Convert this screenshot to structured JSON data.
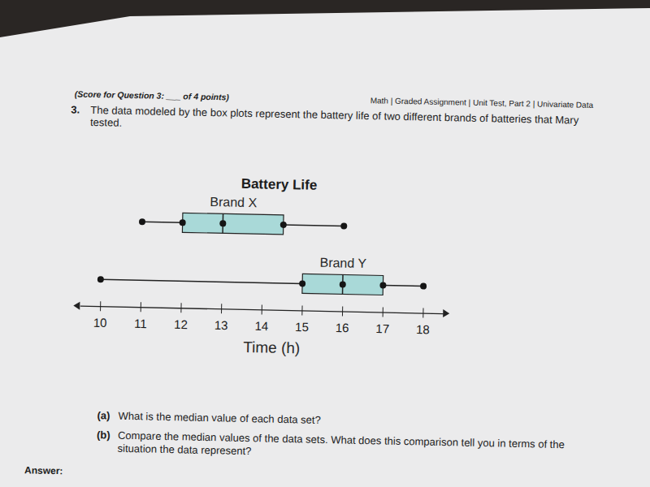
{
  "header": {
    "score": "(Score for Question 3: ___ of 4 points)",
    "course": "Math | Graded Assignment | Unit Test, Part 2 | Univariate Data"
  },
  "question": {
    "number": "3.",
    "lines": [
      "The data modeled by the box plots represent the battery life of two different brands of batteries that Mary",
      "tested."
    ]
  },
  "chart_data": {
    "type": "box",
    "title": "Battery Life",
    "x_label": "Time (h)",
    "orientation": "horizontal",
    "color": "#a9d9d8",
    "xlim": [
      9.5,
      18.5
    ],
    "xticks": [
      10,
      11,
      12,
      13,
      14,
      15,
      16,
      17,
      18
    ],
    "series": [
      {
        "name": "Brand X",
        "min": 11,
        "q1": 12,
        "median": 13,
        "q3": 14.5,
        "max": 16
      },
      {
        "name": "Brand Y",
        "min": 10,
        "q1": 15,
        "median": 16,
        "q3": 17,
        "max": 18
      }
    ]
  },
  "parts": [
    {
      "label": "(a)",
      "lines": [
        "What is the median value of each data set?"
      ]
    },
    {
      "label": "(b)",
      "lines": [
        "Compare the median values of the data sets. What does this comparison tell you in terms of the",
        "situation the data represent?"
      ]
    }
  ],
  "answer_label": "Answer:"
}
